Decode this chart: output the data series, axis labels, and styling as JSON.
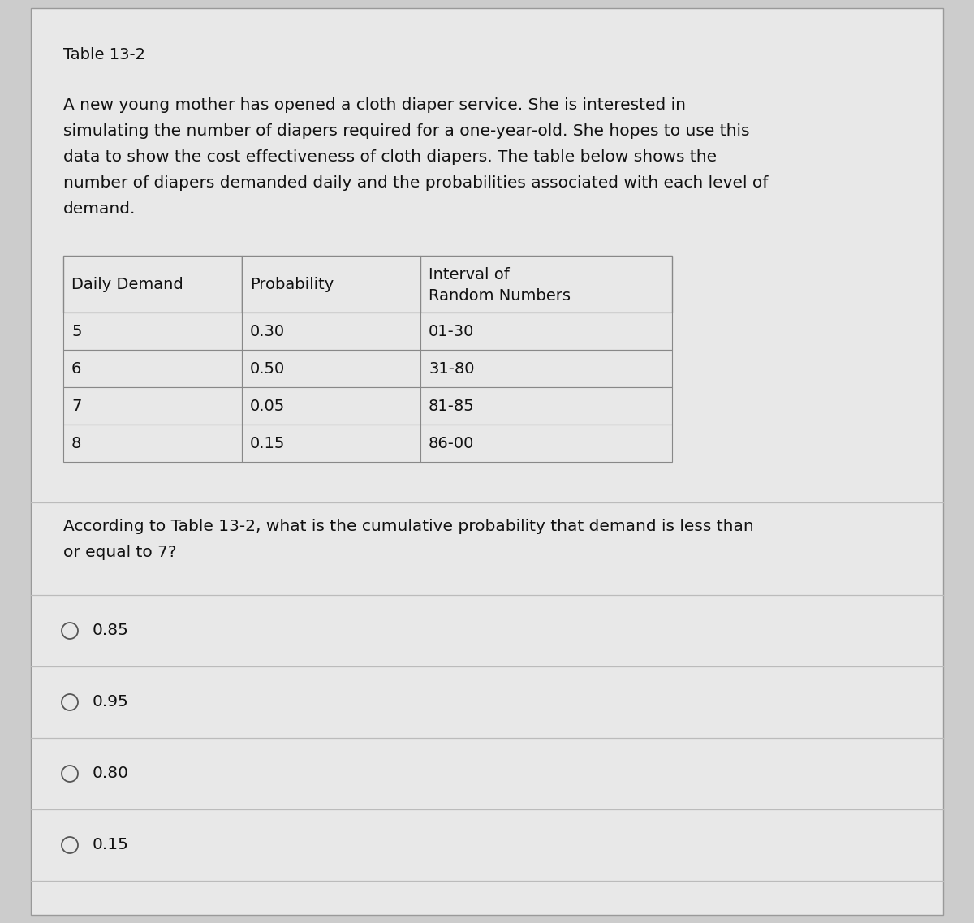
{
  "title": "Table 13-2",
  "paragraph_lines": [
    "A new young mother has opened a cloth diaper service. She is interested in",
    "simulating the number of diapers required for a one-year-old. She hopes to use this",
    "data to show the cost effectiveness of cloth diapers. The table below shows the",
    "number of diapers demanded daily and the probabilities associated with each level of",
    "demand."
  ],
  "table_headers": [
    "Daily Demand",
    "Probability",
    "Interval of \nRandom Numbers"
  ],
  "table_rows": [
    [
      "5",
      "0.30",
      "01-30"
    ],
    [
      "6",
      "0.50",
      "31-80"
    ],
    [
      "7",
      "0.05",
      "81-85"
    ],
    [
      "8",
      "0.15",
      "86-00"
    ]
  ],
  "question_lines": [
    "According to Table 13-2, what is the cumulative probability that demand is less than",
    "or equal to 7?"
  ],
  "choices": [
    "0.85",
    "0.95",
    "0.80",
    "0.15"
  ],
  "bg_color": "#cccccc",
  "table_bg": "#d4d4d4",
  "panel_bg": "#e8e8e8",
  "panel_bg2": "#dadada",
  "text_color": "#111111",
  "border_color": "#999999",
  "sep_color": "#bbbbbb",
  "font_size_title": 14,
  "font_size_body": 14.5,
  "font_size_table": 14,
  "font_size_question": 14.5,
  "font_size_choice": 14.5
}
